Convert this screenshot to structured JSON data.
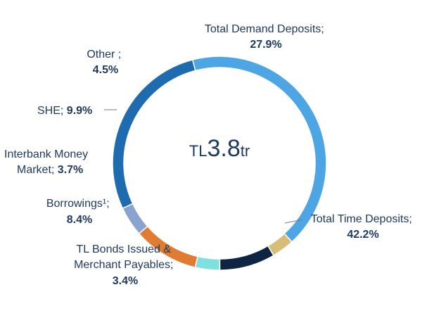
{
  "chart_data": {
    "type": "pie",
    "variant": "donut",
    "center_label": {
      "prefix": "TL",
      "value": "3.8",
      "suffix": "tr"
    },
    "slices": [
      {
        "name": "Total Demand Deposits;",
        "value": 27.9,
        "value_label": "27.9%",
        "color": "#1f6bb0"
      },
      {
        "name": "Total Time Deposits;",
        "value": 42.2,
        "value_label": "42.2%",
        "color": "#4da6e3"
      },
      {
        "name": "TL Bonds Issued & Merchant Payables;",
        "value": 3.4,
        "value_label": "3.4%",
        "color": "#d6bd78"
      },
      {
        "name": "Borrowings¹;",
        "value": 8.4,
        "value_label": "8.4%",
        "color": "#0e2444"
      },
      {
        "name": "Interbank Money Market;",
        "value": 3.7,
        "value_label": "3.7%",
        "color": "#7fe0e0"
      },
      {
        "name": "SHE;",
        "value": 9.9,
        "value_label": "9.9%",
        "color": "#e07b32"
      },
      {
        "name": "Other ;",
        "value": 4.5,
        "value_label": "4.5%",
        "color": "#8aa2d0"
      }
    ]
  }
}
